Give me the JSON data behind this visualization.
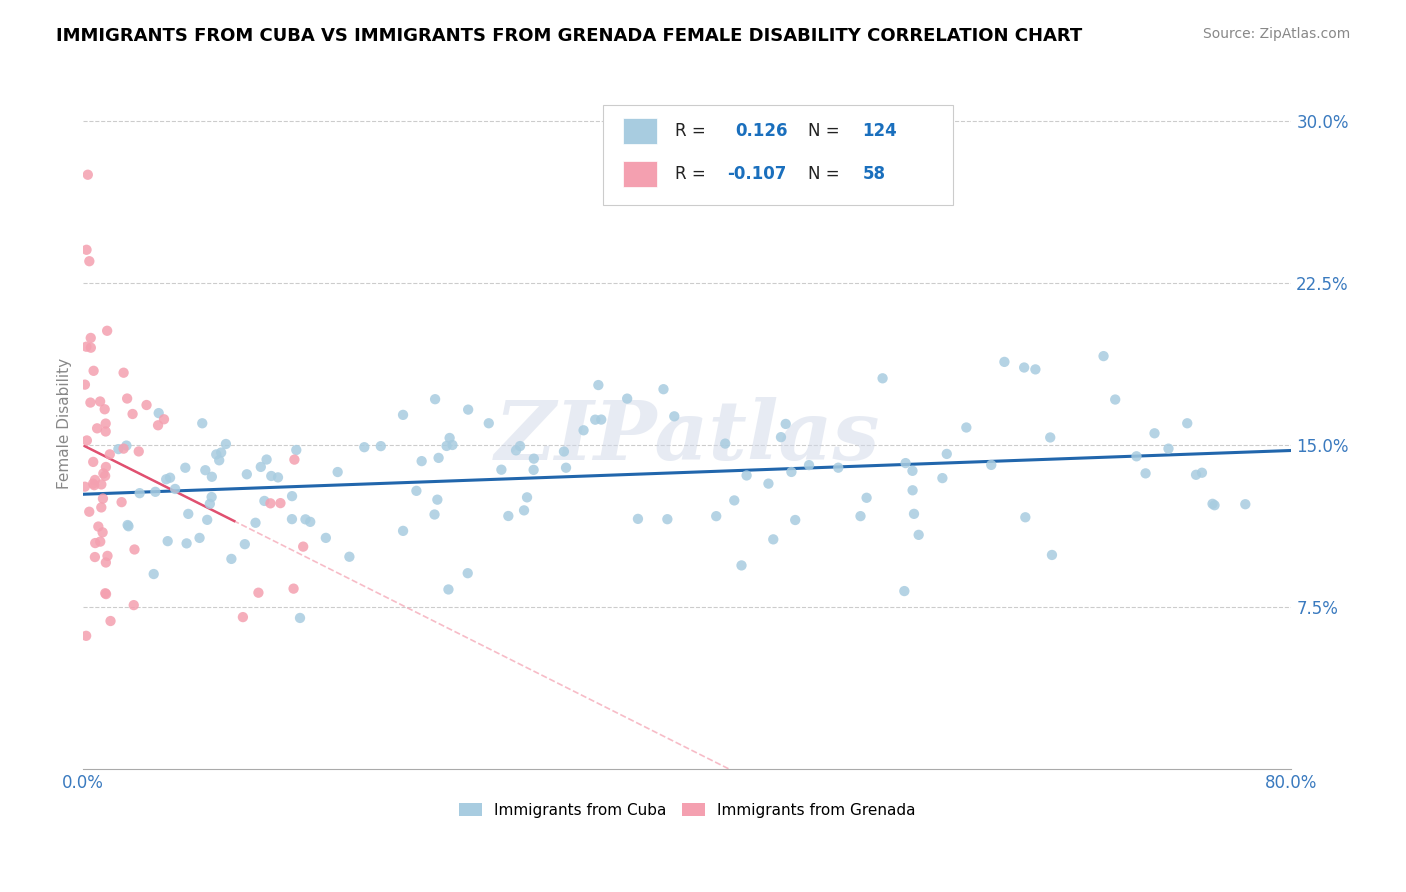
{
  "title": "IMMIGRANTS FROM CUBA VS IMMIGRANTS FROM GRENADA FEMALE DISABILITY CORRELATION CHART",
  "source": "Source: ZipAtlas.com",
  "ylabel": "Female Disability",
  "y_ticks": [
    0.075,
    0.15,
    0.225,
    0.3
  ],
  "y_tick_labels": [
    "7.5%",
    "15.0%",
    "22.5%",
    "30.0%"
  ],
  "xlim": [
    0.0,
    0.8
  ],
  "ylim": [
    0.0,
    0.32
  ],
  "cuba_R": 0.126,
  "cuba_N": 124,
  "grenada_R": -0.107,
  "grenada_N": 58,
  "cuba_color": "#a8cce0",
  "grenada_color": "#f4a0b0",
  "cuba_line_color": "#2166ac",
  "grenada_solid_color": "#e05070",
  "grenada_dash_color": "#f4a0b0",
  "background_color": "#ffffff",
  "watermark": "ZIPatlas",
  "legend_label_color": "#222222",
  "legend_val_color": "#1a6fbd",
  "legend_N_color": "#1a6fbd",
  "tick_color": "#3a7abf",
  "grid_color": "#cccccc"
}
